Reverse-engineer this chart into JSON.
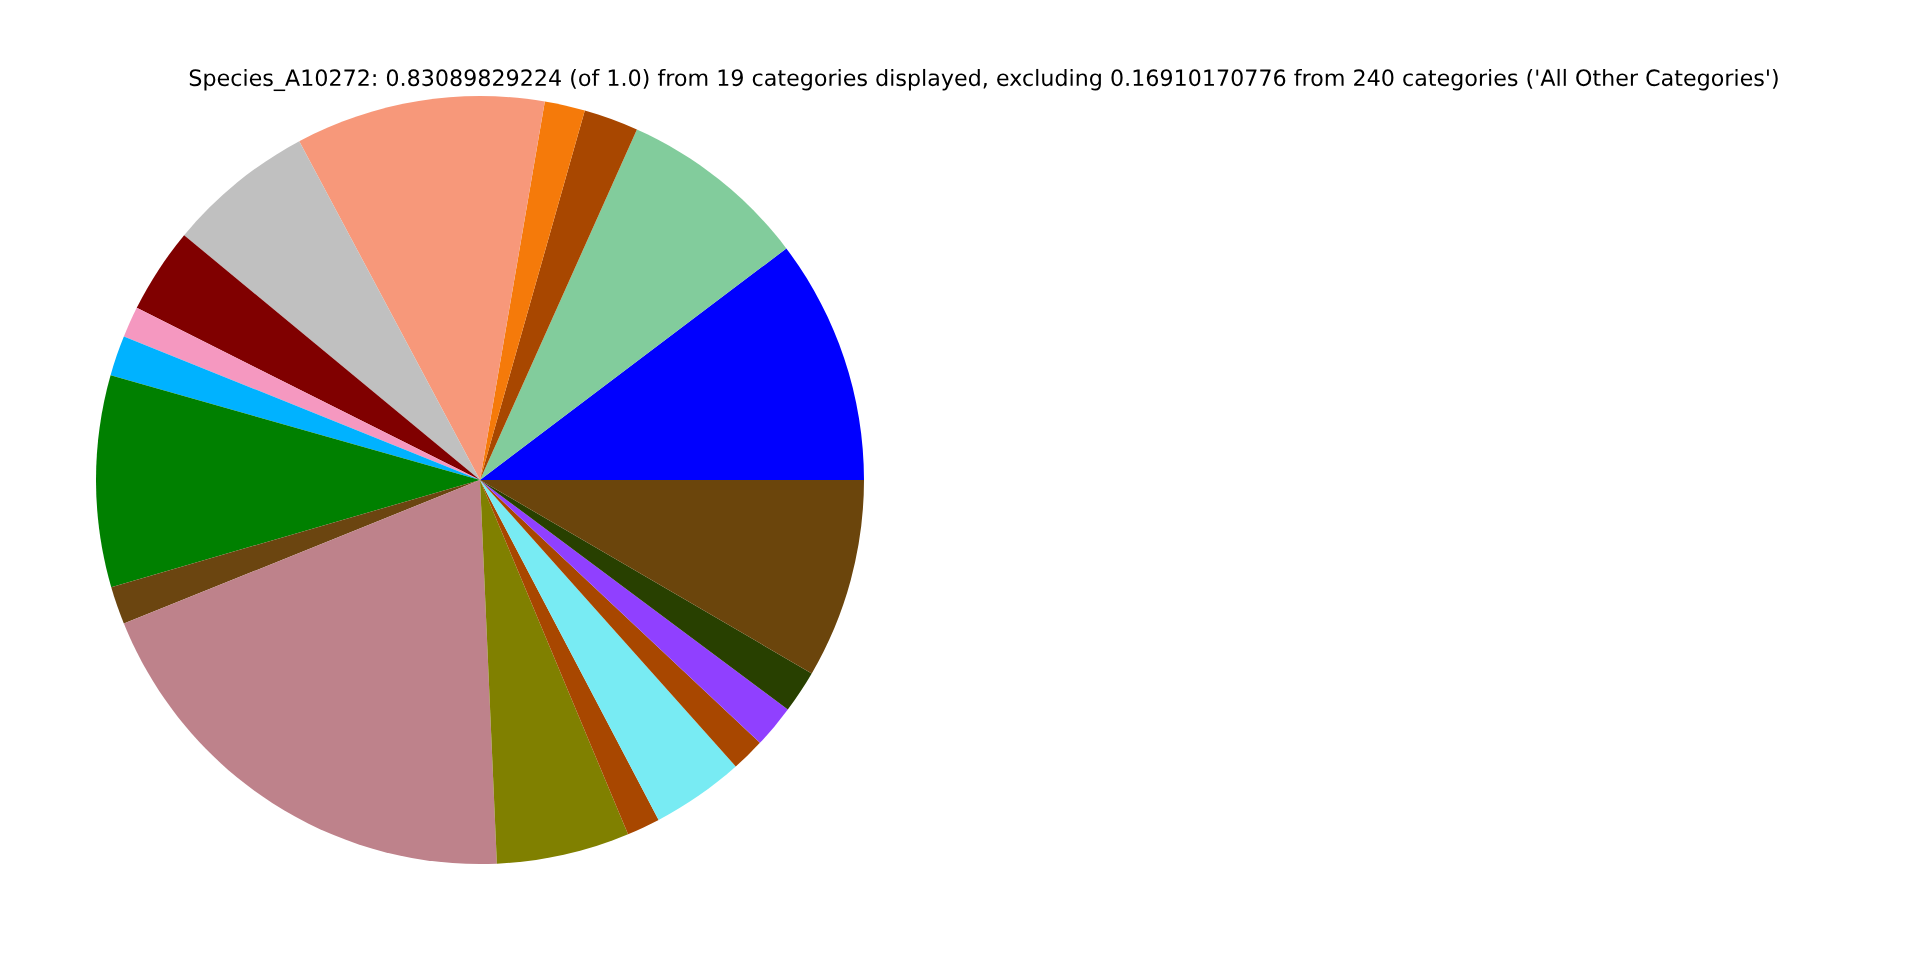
{
  "chart_data": {
    "type": "pie",
    "title": "Species_A10272: 0.83089829224 (of 1.0) from 19 categories displayed, excluding 0.16910170776 from 240 categories ('All Other Categories')",
    "categories": [
      null,
      null,
      null,
      null,
      null,
      null,
      null,
      null,
      null,
      null,
      null,
      null,
      null,
      null,
      null,
      null,
      null,
      null,
      null
    ],
    "values": [
      10.3,
      8.0,
      2.3,
      1.7,
      10.5,
      6.2,
      3.6,
      1.3,
      1.7,
      8.9,
      1.6,
      19.6,
      5.6,
      1.4,
      3.9,
      1.4,
      1.8,
      1.8,
      8.4
    ],
    "colors": [
      "#0000ff",
      "#82cc9c",
      "#a84700",
      "#f57a0a",
      "#f7987a",
      "#c0c0c0",
      "#800000",
      "#f598c0",
      "#00b2ff",
      "#008000",
      "#6b4510",
      "#be828b",
      "#808000",
      "#a84700",
      "#78ebf3",
      "#a84700",
      "#9040ff",
      "#284000",
      "#6b450c"
    ]
  }
}
